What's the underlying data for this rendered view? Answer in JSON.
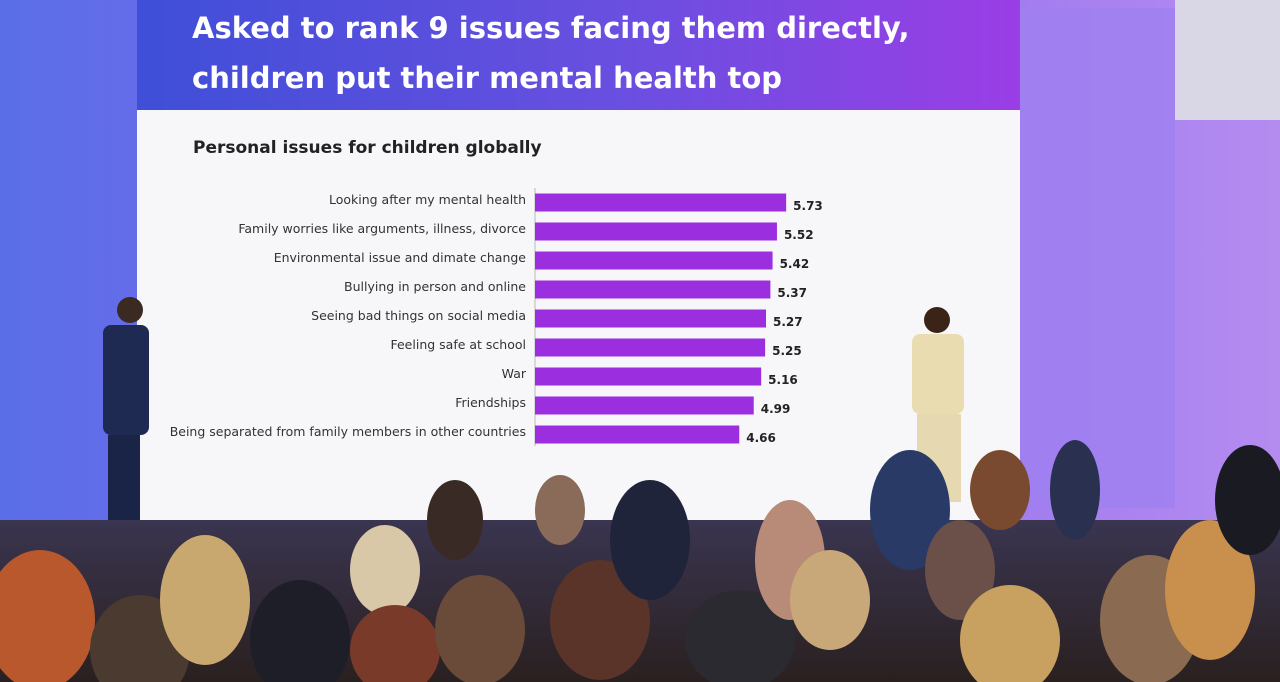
{
  "chart_data": {
    "type": "bar",
    "orientation": "horizontal",
    "title": [
      "Asked to rank 9 issues facing them directly,",
      "children put their mental health top"
    ],
    "subtitle": "Personal issues for children globally",
    "categories": [
      "Looking after my mental health",
      "Family worries like arguments, illness, divorce",
      "Environmental issue and dimate change",
      "Bullying in person and online",
      "Seeing bad things on social media",
      "Feeling safe at school",
      "War",
      "Friendships",
      "Being separated from family members in other countries"
    ],
    "values": [
      5.73,
      5.52,
      5.42,
      5.37,
      5.27,
      5.25,
      5.16,
      4.99,
      4.66
    ],
    "color": "#9b2fe0",
    "xlim": [
      0,
      6
    ]
  }
}
